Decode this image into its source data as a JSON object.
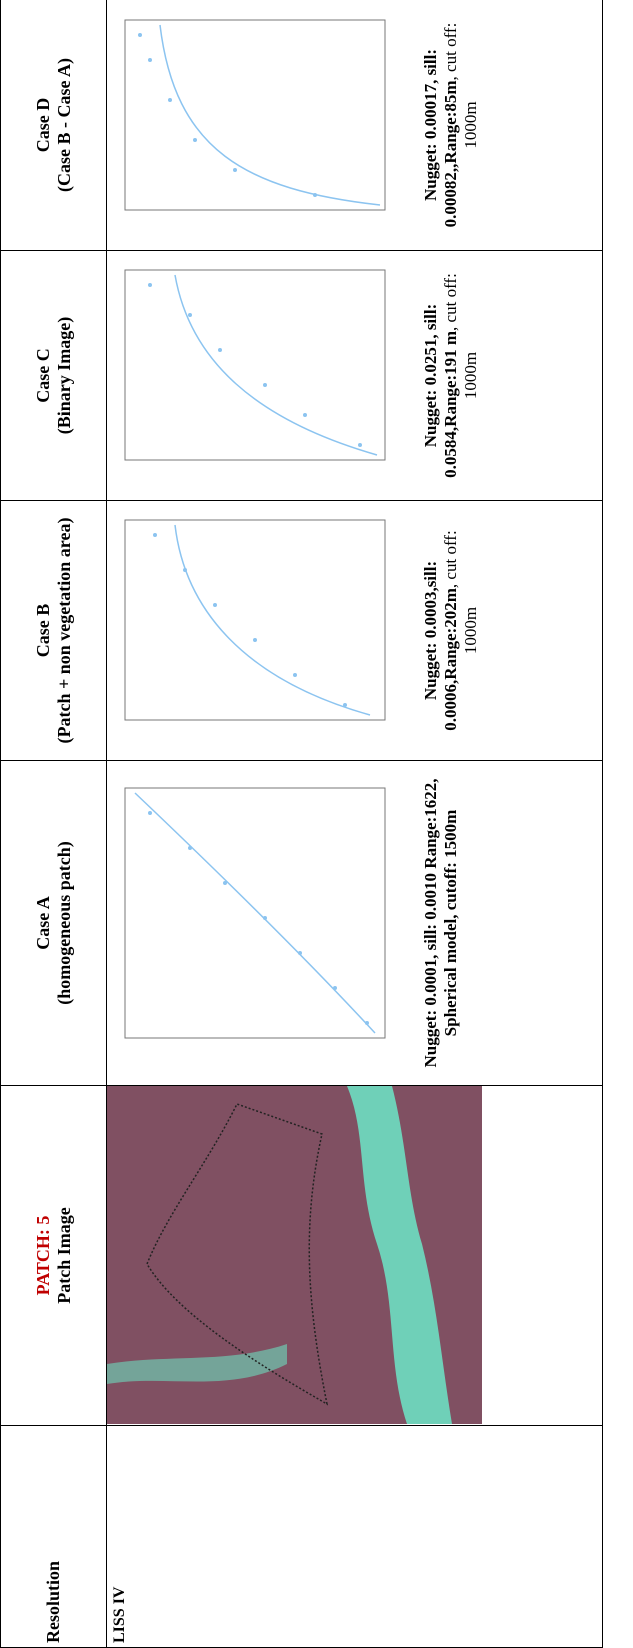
{
  "header": {
    "resolution": "Resolution",
    "patch": "PATCH: 5",
    "patch_image": "Patch Image",
    "cases": [
      {
        "title": "Case A",
        "subtitle": "(homogeneous patch)"
      },
      {
        "title": "Case B",
        "subtitle": "(Patch + non vegetation area)"
      },
      {
        "title": "Case C",
        "subtitle": "(Binary Image)"
      },
      {
        "title": "Case D",
        "subtitle": "(Case B - Case A)"
      }
    ]
  },
  "row": {
    "resolution": "LISS IV",
    "cases": [
      {
        "bold": "Nugget: 0.0001, sill: 0.0010 Range:1622, Spherical model, cutoff: 1500m"
      },
      {
        "bold": "Nugget: 0.0003,sill: 0.0006,Range:202m",
        "normal": ", cut off: 1000m"
      },
      {
        "bold": "Nugget: 0.0251, sill: 0.0584,Range:191 m",
        "normal": ", cut off: 1000m"
      },
      {
        "bold": "Nugget: 0.00017, sill: 0.00082,,Range:85m",
        "normal": ", cut off: 1000m"
      }
    ]
  }
}
